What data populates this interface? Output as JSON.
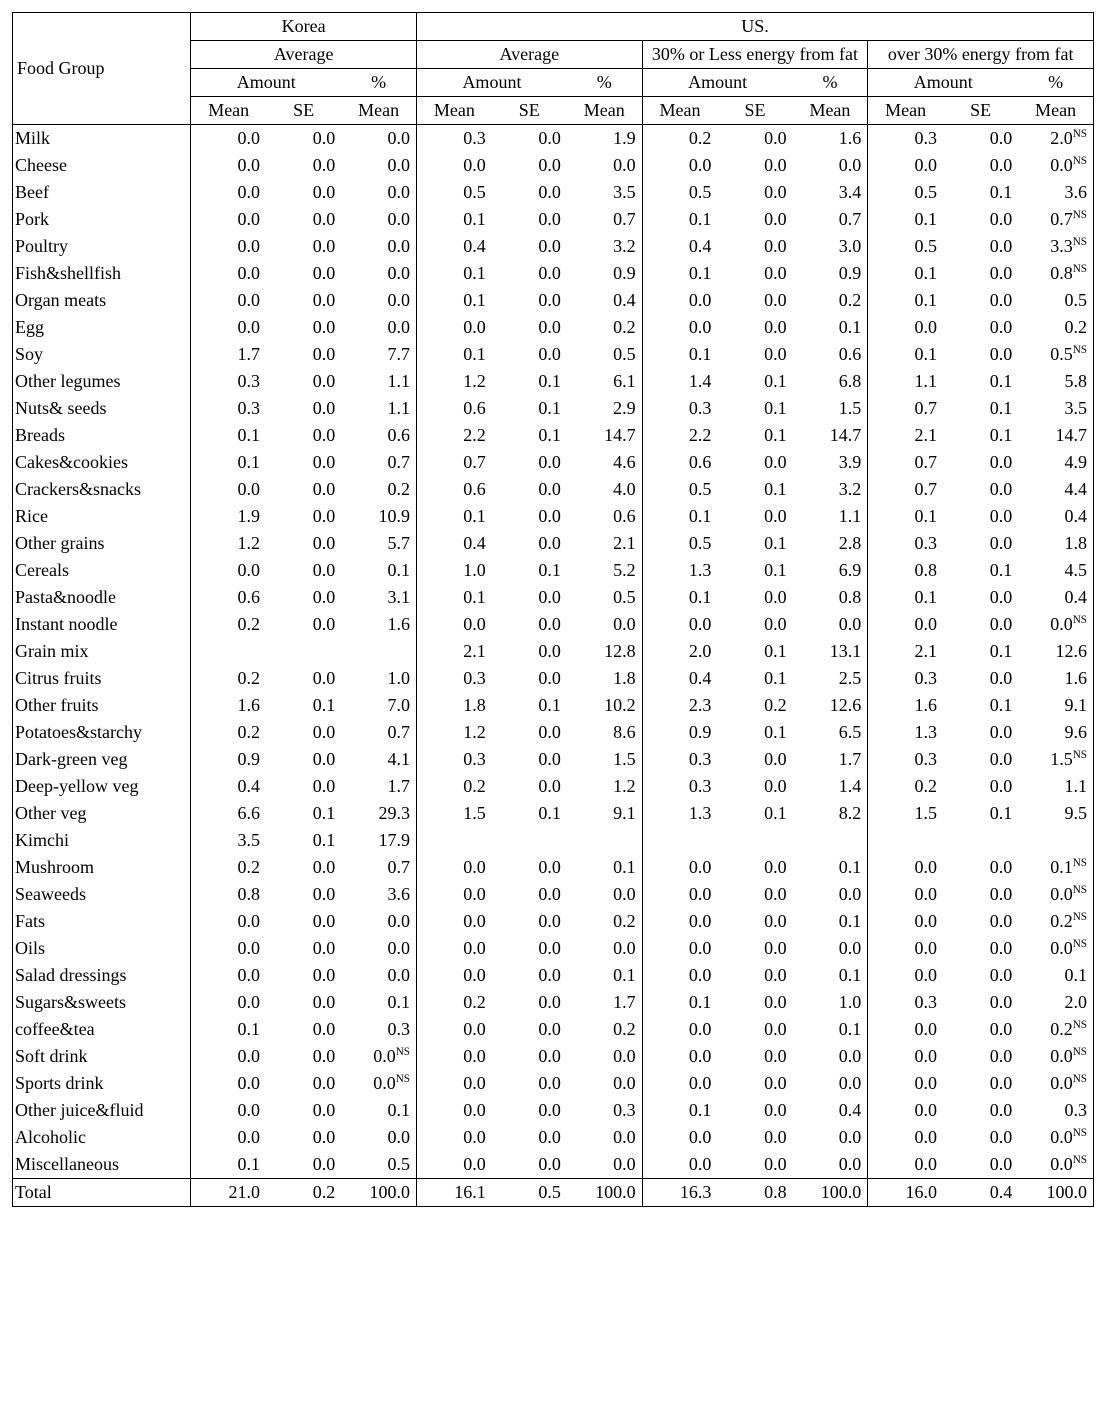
{
  "header": {
    "food_group": "Food Group",
    "korea": "Korea",
    "us": "US.",
    "average": "Average",
    "group30less": "30% or Less energy from fat",
    "group30over": "over 30% energy from fat",
    "amount": "Amount",
    "percent": "%",
    "mean": "Mean",
    "se": "SE"
  },
  "style": {
    "font_family": "Georgia, serif",
    "font_size_pt": 13,
    "border_color": "#000000",
    "background": "#ffffff",
    "text_color": "#000000",
    "ns_mark": "NS",
    "col_label_width_pct": 16.5,
    "col_num_width_pct": 6.96
  },
  "columns_meta": {
    "groups": [
      "korea_avg",
      "us_avg",
      "us_30less",
      "us_30over"
    ],
    "sub": [
      "amount_mean",
      "amount_se",
      "pct_mean"
    ]
  },
  "rows": [
    {
      "label": "Milk",
      "v": [
        "0.0",
        "0.0",
        "0.0",
        "0.3",
        "0.0",
        "1.9",
        "0.2",
        "0.0",
        "1.6",
        "0.3",
        "0.0",
        "2.0"
      ],
      "ns": {
        "11": true
      }
    },
    {
      "label": "Cheese",
      "v": [
        "0.0",
        "0.0",
        "0.0",
        "0.0",
        "0.0",
        "0.0",
        "0.0",
        "0.0",
        "0.0",
        "0.0",
        "0.0",
        "0.0"
      ],
      "ns": {
        "11": true
      }
    },
    {
      "label": "Beef",
      "v": [
        "0.0",
        "0.0",
        "0.0",
        "0.5",
        "0.0",
        "3.5",
        "0.5",
        "0.0",
        "3.4",
        "0.5",
        "0.1",
        "3.6"
      ]
    },
    {
      "label": "Pork",
      "v": [
        "0.0",
        "0.0",
        "0.0",
        "0.1",
        "0.0",
        "0.7",
        "0.1",
        "0.0",
        "0.7",
        "0.1",
        "0.0",
        "0.7"
      ],
      "ns": {
        "11": true
      }
    },
    {
      "label": "Poultry",
      "v": [
        "0.0",
        "0.0",
        "0.0",
        "0.4",
        "0.0",
        "3.2",
        "0.4",
        "0.0",
        "3.0",
        "0.5",
        "0.0",
        "3.3"
      ],
      "ns": {
        "11": true
      }
    },
    {
      "label": "Fish&shellfish",
      "v": [
        "0.0",
        "0.0",
        "0.0",
        "0.1",
        "0.0",
        "0.9",
        "0.1",
        "0.0",
        "0.9",
        "0.1",
        "0.0",
        "0.8"
      ],
      "ns": {
        "11": true
      }
    },
    {
      "label": "Organ meats",
      "v": [
        "0.0",
        "0.0",
        "0.0",
        "0.1",
        "0.0",
        "0.4",
        "0.0",
        "0.0",
        "0.2",
        "0.1",
        "0.0",
        "0.5"
      ]
    },
    {
      "label": "Egg",
      "v": [
        "0.0",
        "0.0",
        "0.0",
        "0.0",
        "0.0",
        "0.2",
        "0.0",
        "0.0",
        "0.1",
        "0.0",
        "0.0",
        "0.2"
      ]
    },
    {
      "label": "Soy",
      "v": [
        "1.7",
        "0.0",
        "7.7",
        "0.1",
        "0.0",
        "0.5",
        "0.1",
        "0.0",
        "0.6",
        "0.1",
        "0.0",
        "0.5"
      ],
      "ns": {
        "11": true
      }
    },
    {
      "label": "Other legumes",
      "v": [
        "0.3",
        "0.0",
        "1.1",
        "1.2",
        "0.1",
        "6.1",
        "1.4",
        "0.1",
        "6.8",
        "1.1",
        "0.1",
        "5.8"
      ]
    },
    {
      "label": "Nuts& seeds",
      "v": [
        "0.3",
        "0.0",
        "1.1",
        "0.6",
        "0.1",
        "2.9",
        "0.3",
        "0.1",
        "1.5",
        "0.7",
        "0.1",
        "3.5"
      ]
    },
    {
      "label": "Breads",
      "v": [
        "0.1",
        "0.0",
        "0.6",
        "2.2",
        "0.1",
        "14.7",
        "2.2",
        "0.1",
        "14.7",
        "2.1",
        "0.1",
        "14.7"
      ]
    },
    {
      "label": "Cakes&cookies",
      "v": [
        "0.1",
        "0.0",
        "0.7",
        "0.7",
        "0.0",
        "4.6",
        "0.6",
        "0.0",
        "3.9",
        "0.7",
        "0.0",
        "4.9"
      ]
    },
    {
      "label": "Crackers&snacks",
      "v": [
        "0.0",
        "0.0",
        "0.2",
        "0.6",
        "0.0",
        "4.0",
        "0.5",
        "0.1",
        "3.2",
        "0.7",
        "0.0",
        "4.4"
      ]
    },
    {
      "label": "Rice",
      "v": [
        "1.9",
        "0.0",
        "10.9",
        "0.1",
        "0.0",
        "0.6",
        "0.1",
        "0.0",
        "1.1",
        "0.1",
        "0.0",
        "0.4"
      ]
    },
    {
      "label": "Other grains",
      "v": [
        "1.2",
        "0.0",
        "5.7",
        "0.4",
        "0.0",
        "2.1",
        "0.5",
        "0.1",
        "2.8",
        "0.3",
        "0.0",
        "1.8"
      ]
    },
    {
      "label": "Cereals",
      "v": [
        "0.0",
        "0.0",
        "0.1",
        "1.0",
        "0.1",
        "5.2",
        "1.3",
        "0.1",
        "6.9",
        "0.8",
        "0.1",
        "4.5"
      ]
    },
    {
      "label": "Pasta&noodle",
      "v": [
        "0.6",
        "0.0",
        "3.1",
        "0.1",
        "0.0",
        "0.5",
        "0.1",
        "0.0",
        "0.8",
        "0.1",
        "0.0",
        "0.4"
      ]
    },
    {
      "label": "Instant noodle",
      "v": [
        "0.2",
        "0.0",
        "1.6",
        "0.0",
        "0.0",
        "0.0",
        "0.0",
        "0.0",
        "0.0",
        "0.0",
        "0.0",
        "0.0"
      ],
      "ns": {
        "11": true
      }
    },
    {
      "label": "Grain mix",
      "v": [
        "",
        "",
        "",
        "2.1",
        "0.0",
        "12.8",
        "2.0",
        "0.1",
        "13.1",
        "2.1",
        "0.1",
        "12.6"
      ]
    },
    {
      "label": "Citrus fruits",
      "v": [
        "0.2",
        "0.0",
        "1.0",
        "0.3",
        "0.0",
        "1.8",
        "0.4",
        "0.1",
        "2.5",
        "0.3",
        "0.0",
        "1.6"
      ]
    },
    {
      "label": "Other fruits",
      "v": [
        "1.6",
        "0.1",
        "7.0",
        "1.8",
        "0.1",
        "10.2",
        "2.3",
        "0.2",
        "12.6",
        "1.6",
        "0.1",
        "9.1"
      ]
    },
    {
      "label": "Potatoes&starchy",
      "v": [
        "0.2",
        "0.0",
        "0.7",
        "1.2",
        "0.0",
        "8.6",
        "0.9",
        "0.1",
        "6.5",
        "1.3",
        "0.0",
        "9.6"
      ]
    },
    {
      "label": "Dark-green veg",
      "v": [
        "0.9",
        "0.0",
        "4.1",
        "0.3",
        "0.0",
        "1.5",
        "0.3",
        "0.0",
        "1.7",
        "0.3",
        "0.0",
        "1.5"
      ],
      "ns": {
        "11": true
      }
    },
    {
      "label": "Deep-yellow veg",
      "v": [
        "0.4",
        "0.0",
        "1.7",
        "0.2",
        "0.0",
        "1.2",
        "0.3",
        "0.0",
        "1.4",
        "0.2",
        "0.0",
        "1.1"
      ]
    },
    {
      "label": "Other veg",
      "v": [
        "6.6",
        "0.1",
        "29.3",
        "1.5",
        "0.1",
        "9.1",
        "1.3",
        "0.1",
        "8.2",
        "1.5",
        "0.1",
        "9.5"
      ]
    },
    {
      "label": "Kimchi",
      "v": [
        "3.5",
        "0.1",
        "17.9",
        "",
        "",
        "",
        "",
        "",
        "",
        "",
        "",
        ""
      ]
    },
    {
      "label": "Mushroom",
      "v": [
        "0.2",
        "0.0",
        "0.7",
        "0.0",
        "0.0",
        "0.1",
        "0.0",
        "0.0",
        "0.1",
        "0.0",
        "0.0",
        "0.1"
      ],
      "ns": {
        "11": true
      }
    },
    {
      "label": "Seaweeds",
      "v": [
        "0.8",
        "0.0",
        "3.6",
        "0.0",
        "0.0",
        "0.0",
        "0.0",
        "0.0",
        "0.0",
        "0.0",
        "0.0",
        "0.0"
      ],
      "ns": {
        "11": true
      }
    },
    {
      "label": "Fats",
      "v": [
        "0.0",
        "0.0",
        "0.0",
        "0.0",
        "0.0",
        "0.2",
        "0.0",
        "0.0",
        "0.1",
        "0.0",
        "0.0",
        "0.2"
      ],
      "ns": {
        "11": true
      }
    },
    {
      "label": "Oils",
      "v": [
        "0.0",
        "0.0",
        "0.0",
        "0.0",
        "0.0",
        "0.0",
        "0.0",
        "0.0",
        "0.0",
        "0.0",
        "0.0",
        "0.0"
      ],
      "ns": {
        "11": true
      }
    },
    {
      "label": "Salad dressings",
      "v": [
        "0.0",
        "0.0",
        "0.0",
        "0.0",
        "0.0",
        "0.1",
        "0.0",
        "0.0",
        "0.1",
        "0.0",
        "0.0",
        "0.1"
      ]
    },
    {
      "label": "Sugars&sweets",
      "v": [
        "0.0",
        "0.0",
        "0.1",
        "0.2",
        "0.0",
        "1.7",
        "0.1",
        "0.0",
        "1.0",
        "0.3",
        "0.0",
        "2.0"
      ]
    },
    {
      "label": "coffee&tea",
      "v": [
        "0.1",
        "0.0",
        "0.3",
        "0.0",
        "0.0",
        "0.2",
        "0.0",
        "0.0",
        "0.1",
        "0.0",
        "0.0",
        "0.2"
      ],
      "ns": {
        "11": true
      }
    },
    {
      "label": "Soft drink",
      "v": [
        "0.0",
        "0.0",
        "0.0",
        "0.0",
        "0.0",
        "0.0",
        "0.0",
        "0.0",
        "0.0",
        "0.0",
        "0.0",
        "0.0"
      ],
      "ns": {
        "2": true,
        "11": true
      }
    },
    {
      "label": "Sports drink",
      "v": [
        "0.0",
        "0.0",
        "0.0",
        "0.0",
        "0.0",
        "0.0",
        "0.0",
        "0.0",
        "0.0",
        "0.0",
        "0.0",
        "0.0"
      ],
      "ns": {
        "2": true,
        "11": true
      }
    },
    {
      "label": "Other juice&fluid",
      "v": [
        "0.0",
        "0.0",
        "0.1",
        "0.0",
        "0.0",
        "0.3",
        "0.1",
        "0.0",
        "0.4",
        "0.0",
        "0.0",
        "0.3"
      ]
    },
    {
      "label": "Alcoholic",
      "v": [
        "0.0",
        "0.0",
        "0.0",
        "0.0",
        "0.0",
        "0.0",
        "0.0",
        "0.0",
        "0.0",
        "0.0",
        "0.0",
        "0.0"
      ],
      "ns": {
        "11": true
      }
    },
    {
      "label": "Miscellaneous",
      "v": [
        "0.1",
        "0.0",
        "0.5",
        "0.0",
        "0.0",
        "0.0",
        "0.0",
        "0.0",
        "0.0",
        "0.0",
        "0.0",
        "0.0"
      ],
      "ns": {
        "11": true
      }
    }
  ],
  "total": {
    "label": "Total",
    "v": [
      "21.0",
      "0.2",
      "100.0",
      "16.1",
      "0.5",
      "100.0",
      "16.3",
      "0.8",
      "100.0",
      "16.0",
      "0.4",
      "100.0"
    ]
  }
}
